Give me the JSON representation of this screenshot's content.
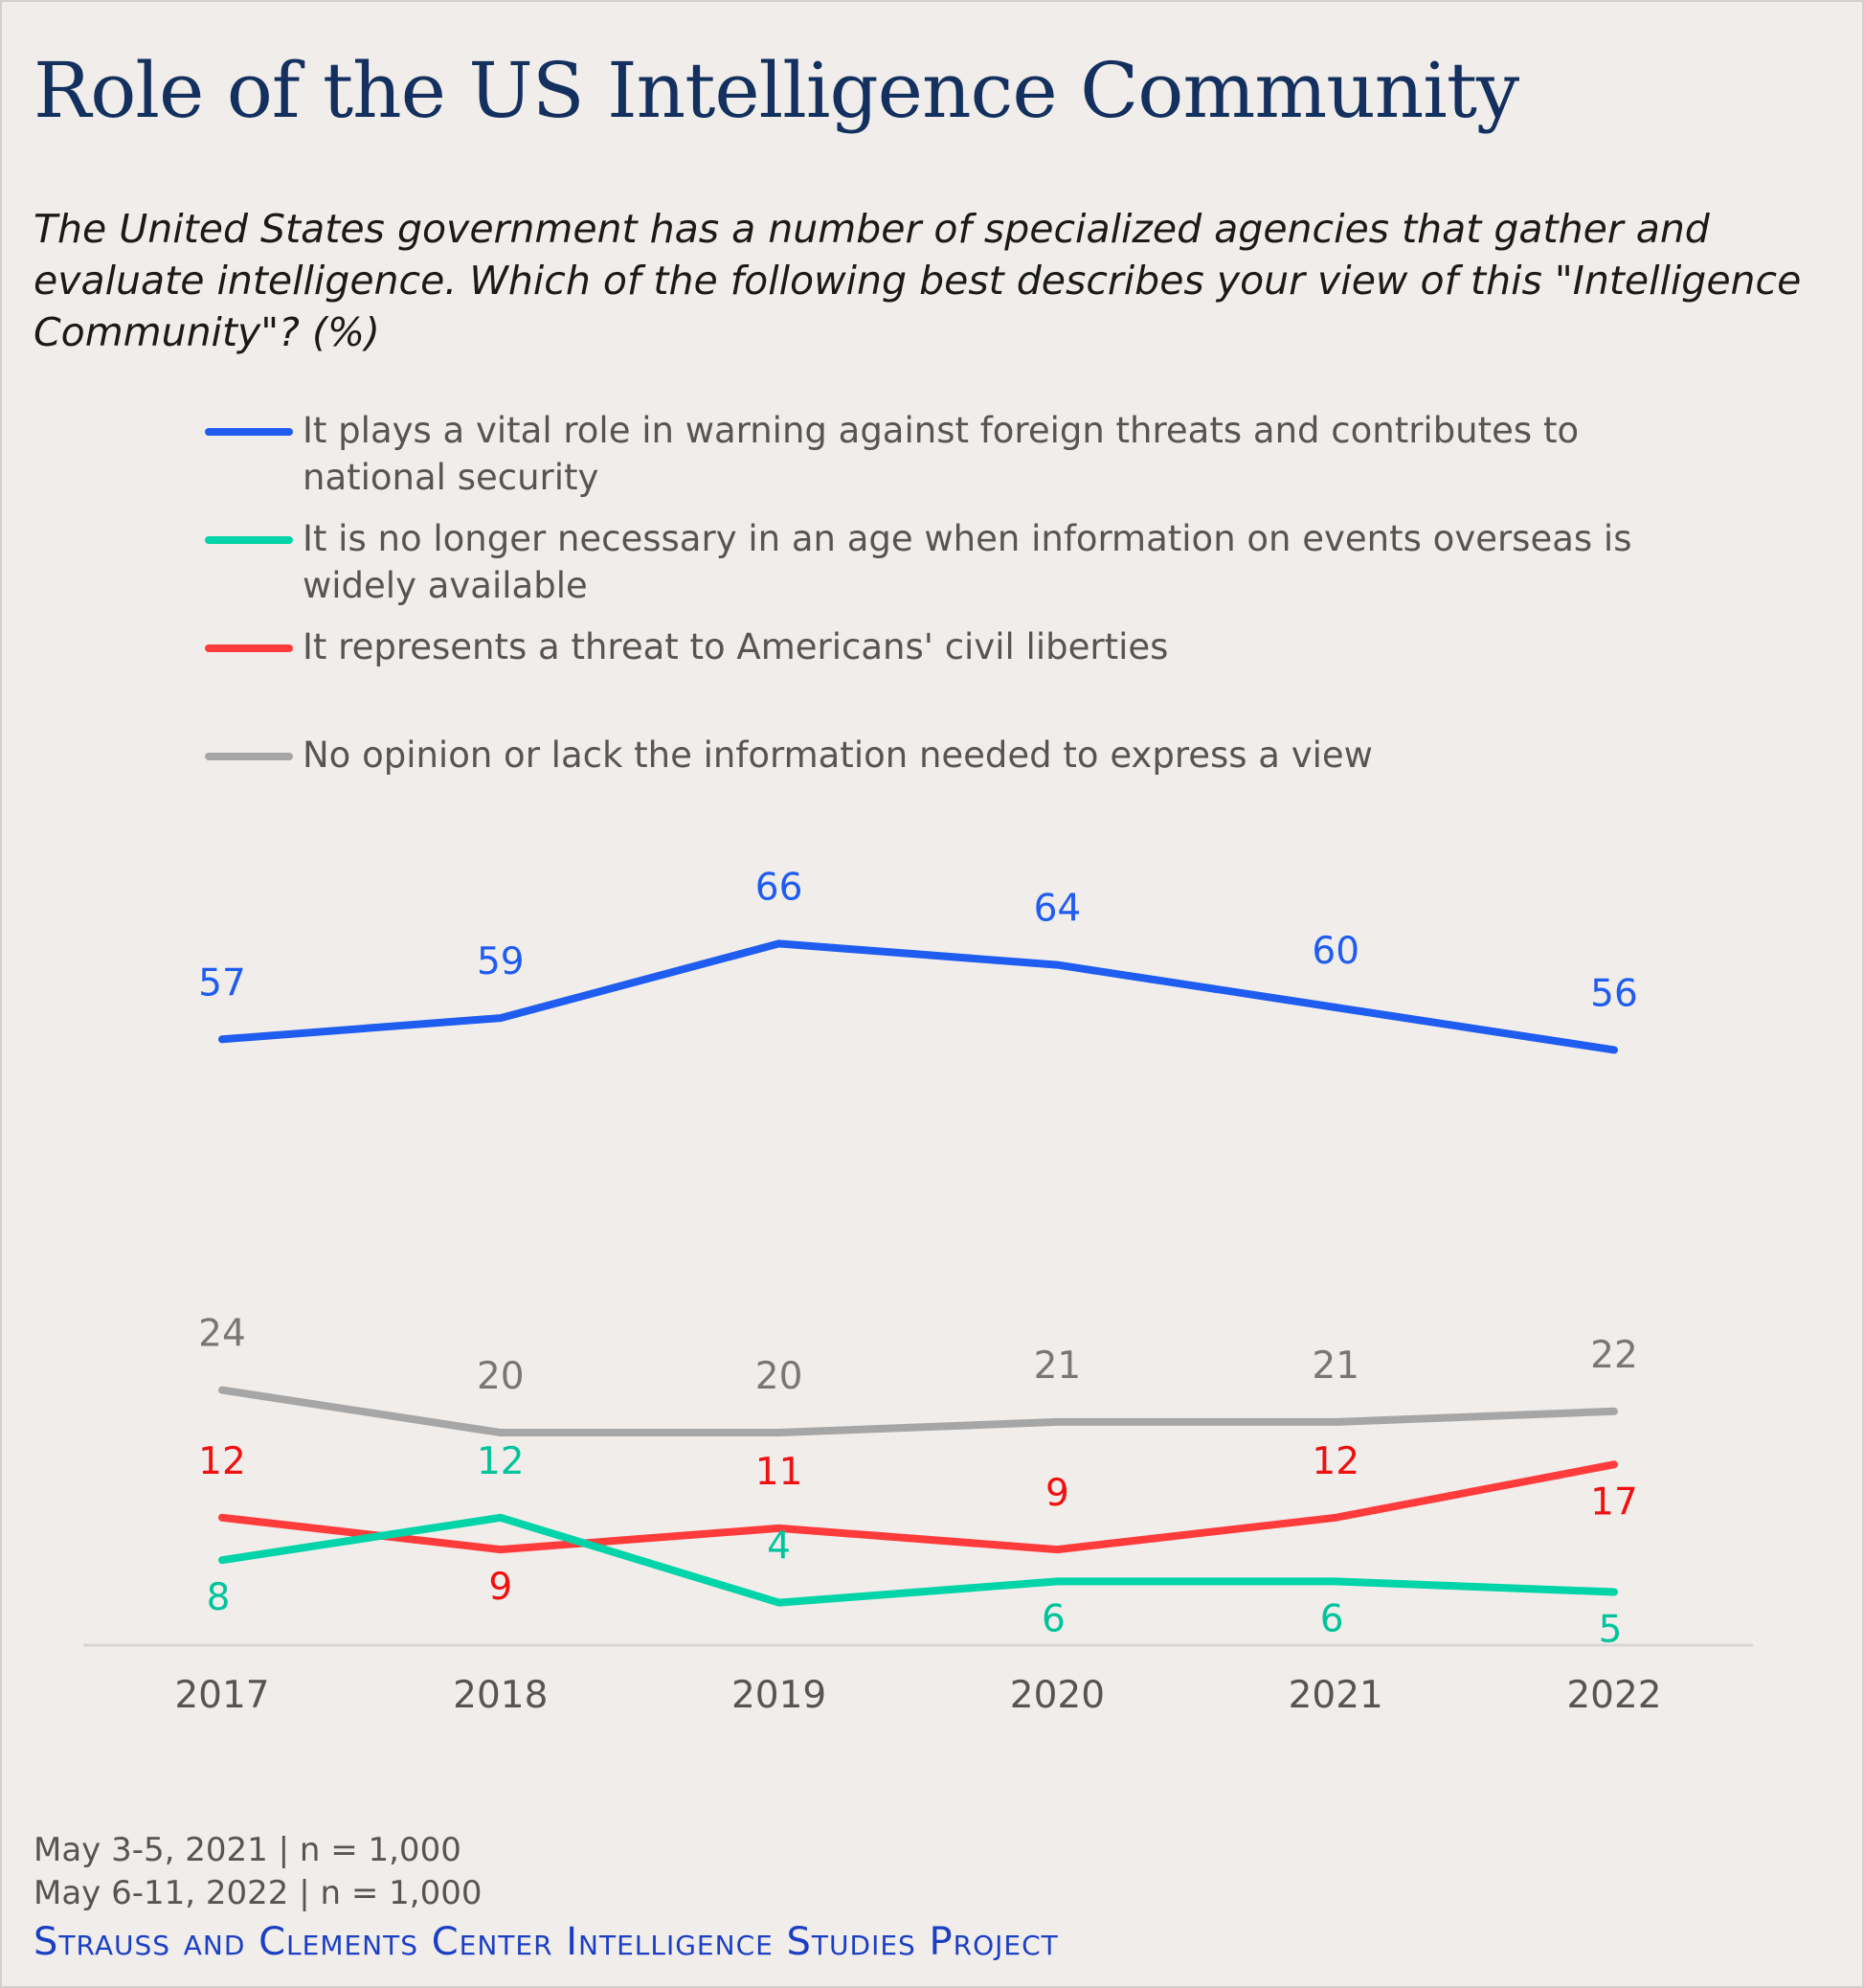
{
  "title": "Role of the US Intelligence Community",
  "subtitle": "The United States government has a number of specialized agencies that gather and evaluate intelligence. Which of the following best describes your view of this \"Intelligence Community\"? (%)",
  "footer": {
    "sample1": "May 3-5, 2021 | n = 1,000",
    "sample2": "May 6-11, 2022 | n = 1,000",
    "source": "Strauss and Clements Center Intelligence Studies Project"
  },
  "chart_data": {
    "type": "line",
    "x": [
      "2017",
      "2018",
      "2019",
      "2020",
      "2021",
      "2022"
    ],
    "ylim": [
      0,
      70
    ],
    "grid": false,
    "legend_position": "top",
    "series": [
      {
        "name": "It plays a vital role in warning against foreign threats and contributes to national security",
        "color": "#1f5cf0",
        "values": [
          57,
          59,
          66,
          64,
          60,
          56
        ]
      },
      {
        "name": "It is no longer necessary in an age when information on events overseas is widely available",
        "color": "#00d4a8",
        "values": [
          8,
          12,
          4,
          6,
          6,
          5
        ]
      },
      {
        "name": "It represents a threat to Americans' civil liberties",
        "color": "#ff3b3b",
        "values": [
          12,
          9,
          11,
          9,
          12,
          17
        ]
      },
      {
        "name": "No opinion or lack the information needed to express a view",
        "color": "#a6a6a6",
        "values": [
          24,
          20,
          20,
          21,
          21,
          22
        ]
      }
    ],
    "label_colors": [
      "#1f5cf0",
      "#00c49b",
      "#f01010",
      "#777777"
    ]
  }
}
